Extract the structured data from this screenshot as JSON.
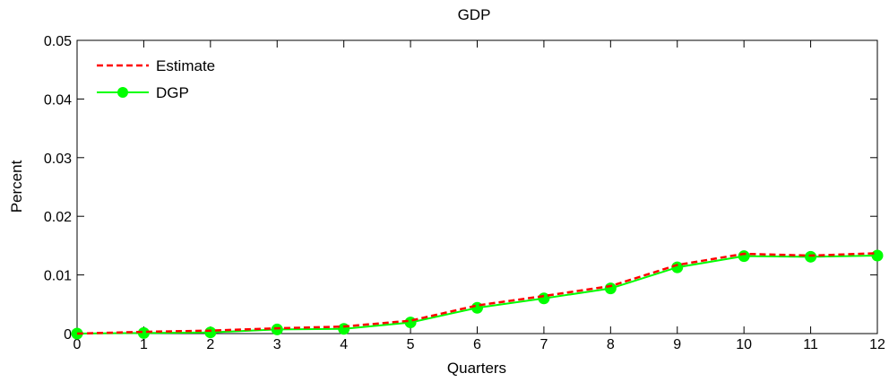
{
  "chart_data": {
    "type": "line",
    "title": "GDP",
    "xlabel": "Quarters",
    "ylabel": "Percent",
    "xlim": [
      0,
      12
    ],
    "ylim": [
      0,
      0.05
    ],
    "x": [
      0,
      1,
      2,
      3,
      4,
      5,
      6,
      7,
      8,
      9,
      10,
      11,
      12
    ],
    "xticks": [
      "0",
      "1",
      "2",
      "3",
      "4",
      "5",
      "6",
      "7",
      "8",
      "9",
      "10",
      "11",
      "12"
    ],
    "yticks": [
      "0",
      "0.01",
      "0.02",
      "0.03",
      "0.04",
      "0.05"
    ],
    "grid": false,
    "legend_position": "top-left",
    "series": [
      {
        "name": "Estimate",
        "color": "#ff0000",
        "style": "dashed",
        "values": [
          0.0,
          0.0003,
          0.0005,
          0.0009,
          0.0012,
          0.0022,
          0.0048,
          0.0064,
          0.0081,
          0.0117,
          0.0136,
          0.0133,
          0.0137
        ]
      },
      {
        "name": "DGP",
        "color": "#00ff00",
        "style": "solid-marker",
        "values": [
          0.0,
          0.0001,
          0.0002,
          0.0007,
          0.0008,
          0.0019,
          0.0044,
          0.006,
          0.0077,
          0.0113,
          0.0132,
          0.0131,
          0.0133
        ]
      }
    ]
  }
}
